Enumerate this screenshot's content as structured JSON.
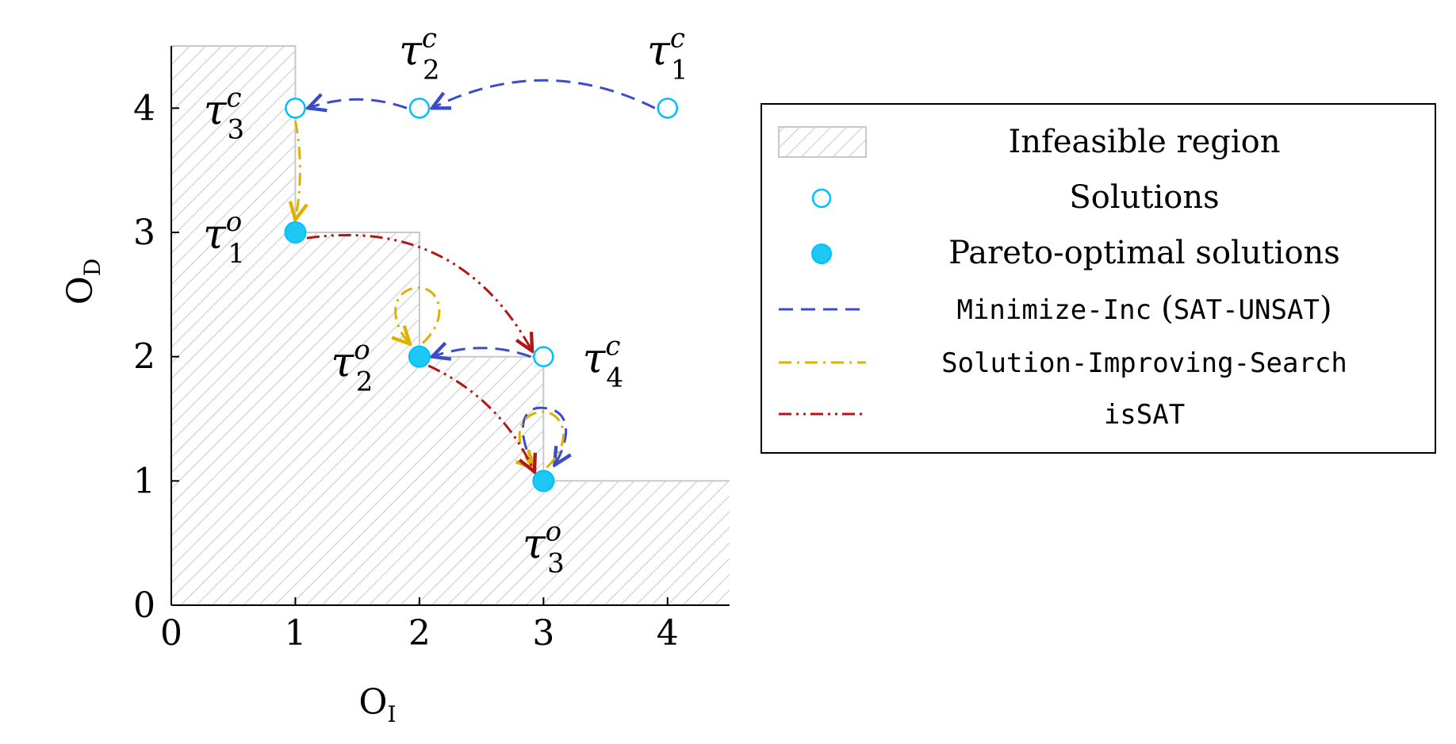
{
  "chart_data": {
    "type": "scatter",
    "xlabel": "O",
    "xlabel_sub": "I",
    "ylabel": "O",
    "ylabel_sub": "D",
    "xlim": [
      0,
      4.5
    ],
    "ylim": [
      0,
      4.5
    ],
    "xticks": [
      "0",
      "1",
      "2",
      "3",
      "4"
    ],
    "yticks": [
      "0",
      "1",
      "2",
      "3",
      "4"
    ],
    "grid": false,
    "legend_position": "right",
    "infeasible_region": [
      [
        0,
        4.5
      ],
      [
        1,
        4.5
      ],
      [
        1,
        3
      ],
      [
        2,
        3
      ],
      [
        2,
        2
      ],
      [
        3,
        2
      ],
      [
        3,
        1
      ],
      [
        4.5,
        1
      ],
      [
        4.5,
        0
      ],
      [
        0,
        0
      ]
    ],
    "solutions": [
      {
        "label": "τ",
        "sub": "3",
        "sup": "c",
        "x": 1,
        "y": 4,
        "pareto": false
      },
      {
        "label": "τ",
        "sub": "2",
        "sup": "c",
        "x": 2,
        "y": 4,
        "pareto": false
      },
      {
        "label": "τ",
        "sub": "1",
        "sup": "c",
        "x": 4,
        "y": 4,
        "pareto": false
      },
      {
        "label": "τ",
        "sub": "4",
        "sup": "c",
        "x": 3,
        "y": 2,
        "pareto": false
      },
      {
        "label": "τ",
        "sub": "1",
        "sup": "o",
        "x": 1,
        "y": 3,
        "pareto": true
      },
      {
        "label": "τ",
        "sub": "2",
        "sup": "o",
        "x": 2,
        "y": 2,
        "pareto": true
      },
      {
        "label": "τ",
        "sub": "3",
        "sup": "o",
        "x": 3,
        "y": 1,
        "pareto": true
      }
    ],
    "arrows": [
      {
        "method": "Minimize-Inc",
        "from": [
          4,
          4
        ],
        "to": [
          2,
          4
        ]
      },
      {
        "method": "Minimize-Inc",
        "from": [
          2,
          4
        ],
        "to": [
          1,
          4
        ]
      },
      {
        "method": "Minimize-Inc",
        "from": [
          3,
          2
        ],
        "to": [
          2,
          2
        ]
      },
      {
        "method": "Minimize-Inc",
        "from": [
          3,
          1
        ],
        "to": [
          3,
          1
        ],
        "loop": true
      },
      {
        "method": "Solution-Improving-Search",
        "from": [
          1,
          4
        ],
        "to": [
          1,
          3
        ]
      },
      {
        "method": "Solution-Improving-Search",
        "from": [
          2,
          2
        ],
        "to": [
          2,
          2
        ],
        "loop": true
      },
      {
        "method": "Solution-Improving-Search",
        "from": [
          3,
          1
        ],
        "to": [
          3,
          1
        ],
        "loop": true
      },
      {
        "method": "isSAT",
        "from": [
          1,
          3
        ],
        "to": [
          3,
          2
        ]
      },
      {
        "method": "isSAT",
        "from": [
          2,
          2
        ],
        "to": [
          3,
          1
        ]
      }
    ],
    "legend": [
      {
        "key": "infeasible",
        "text": "Infeasible region"
      },
      {
        "key": "solutions",
        "text": "Solutions"
      },
      {
        "key": "pareto",
        "text": "Pareto-optimal solutions"
      },
      {
        "key": "minimize",
        "text_mono": "Minimize-Inc",
        "text_paren_open": "(",
        "text_paren_mono": "SAT-UNSAT",
        "text_paren_close": ")"
      },
      {
        "key": "sis",
        "text_mono": "Solution-Improving-Search"
      },
      {
        "key": "issat",
        "text_mono": "isSAT"
      }
    ],
    "colors": {
      "solution": "#00bfff",
      "pareto_fill": "#1ec8f5",
      "minimize": "#3a4cc8",
      "sis": "#e0b000",
      "issat": "#b01818",
      "hatch": "#c8c8c8",
      "axis": "#000000"
    }
  }
}
